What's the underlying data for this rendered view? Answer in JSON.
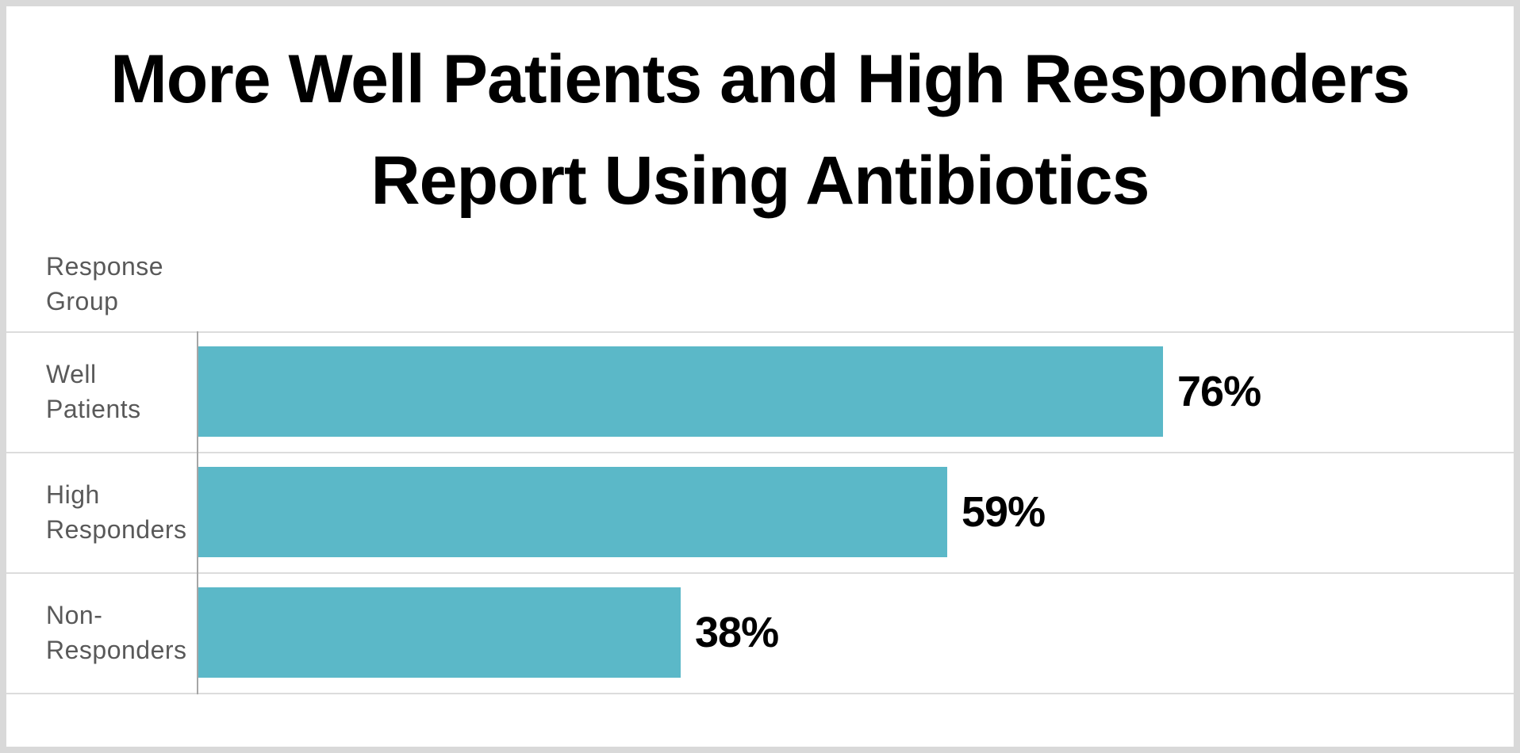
{
  "title": {
    "line1": "More Well Patients and High Responders",
    "line2": "Report Using Antibiotics"
  },
  "axis": {
    "y_label": "Response Group"
  },
  "chart_data": {
    "type": "bar",
    "orientation": "horizontal",
    "title": "More Well Patients and High Responders Report Using Antibiotics",
    "ylabel": "Response Group",
    "xlabel": "",
    "categories": [
      "Well Patients",
      "High Responders",
      "Non-Responders"
    ],
    "values": [
      76,
      59,
      38
    ],
    "value_labels": [
      "76%",
      "59%",
      "38%"
    ],
    "xlim": [
      0,
      100
    ],
    "grid": "horizontal row separator lines, no x-axis ticks or legend",
    "bar_color": "#5BB8C8"
  },
  "colors": {
    "bar": "#5BB8C8",
    "gridline": "#DCDCDC",
    "axis_line": "#A6A6A6",
    "label_text": "#595959",
    "title_text": "#000000",
    "frame_border": "#D9D9D9",
    "background": "#FFFFFF"
  }
}
